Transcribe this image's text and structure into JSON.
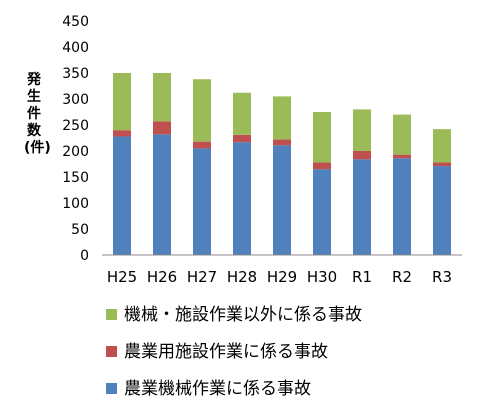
{
  "chart_data": {
    "type": "bar",
    "stacked": true,
    "ylabel": "発生件数(件)",
    "ylim": [
      0,
      450
    ],
    "yticks": [
      0,
      50,
      100,
      150,
      200,
      250,
      300,
      350,
      400,
      450
    ],
    "grid": false,
    "legend_position": "bottom",
    "categories": [
      "H25",
      "H26",
      "H27",
      "H28",
      "H29",
      "H30",
      "R1",
      "R2",
      "R3"
    ],
    "series": [
      {
        "name": "農業機械作業に係る事故",
        "color": "#4f81bd",
        "values": [
          228,
          232,
          205,
          217,
          211,
          165,
          184,
          186,
          171
        ]
      },
      {
        "name": "農業用施設作業に係る事故",
        "color": "#c0504d",
        "values": [
          12,
          25,
          13,
          14,
          11,
          13,
          16,
          7,
          7
        ]
      },
      {
        "name": "機械・施設作業以外に係る事故",
        "color": "#9bbb59",
        "values": [
          110,
          93,
          120,
          81,
          83,
          97,
          80,
          77,
          64
        ]
      }
    ]
  }
}
